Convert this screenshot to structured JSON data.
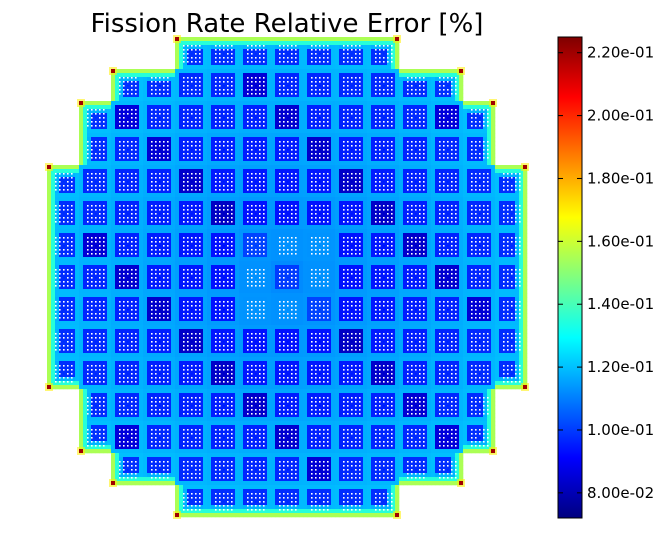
{
  "chart_data": {
    "type": "heatmap",
    "title": "Fission Rate Relative Error [%]",
    "xlabel": "",
    "ylabel": "",
    "grid": false,
    "assembly_grid": {
      "rows": 15,
      "cols": 15
    },
    "row_spans": [
      [
        4,
        10
      ],
      [
        2,
        12
      ],
      [
        1,
        13
      ],
      [
        1,
        13
      ],
      [
        0,
        14
      ],
      [
        0,
        14
      ],
      [
        0,
        14
      ],
      [
        0,
        14
      ],
      [
        0,
        14
      ],
      [
        0,
        14
      ],
      [
        0,
        14
      ],
      [
        1,
        13
      ],
      [
        1,
        13
      ],
      [
        2,
        12
      ],
      [
        4,
        10
      ]
    ],
    "colorbar": {
      "colormap": "jet",
      "range": [
        0.072,
        0.225
      ],
      "ticks": [
        {
          "value": 0.08,
          "label": "8.00e-02"
        },
        {
          "value": 0.1,
          "label": "1.00e-01"
        },
        {
          "value": 0.12,
          "label": "1.20e-01"
        },
        {
          "value": 0.14,
          "label": "1.40e-01"
        },
        {
          "value": 0.16,
          "label": "1.60e-01"
        },
        {
          "value": 0.18,
          "label": "1.80e-01"
        },
        {
          "value": 0.2,
          "label": "2.00e-01"
        },
        {
          "value": 0.22,
          "label": "2.20e-01"
        }
      ]
    },
    "value_model": {
      "core_center": 0.1,
      "fuel_pin_interior": 0.092,
      "assembly_gap": 0.112,
      "guide_tube": 0.06,
      "periphery_edge": 0.135,
      "reflector_corner_max": 0.22
    },
    "colors": {
      "low": "#00007f",
      "mid": "#7fff7f",
      "high": "#7f0000"
    }
  }
}
